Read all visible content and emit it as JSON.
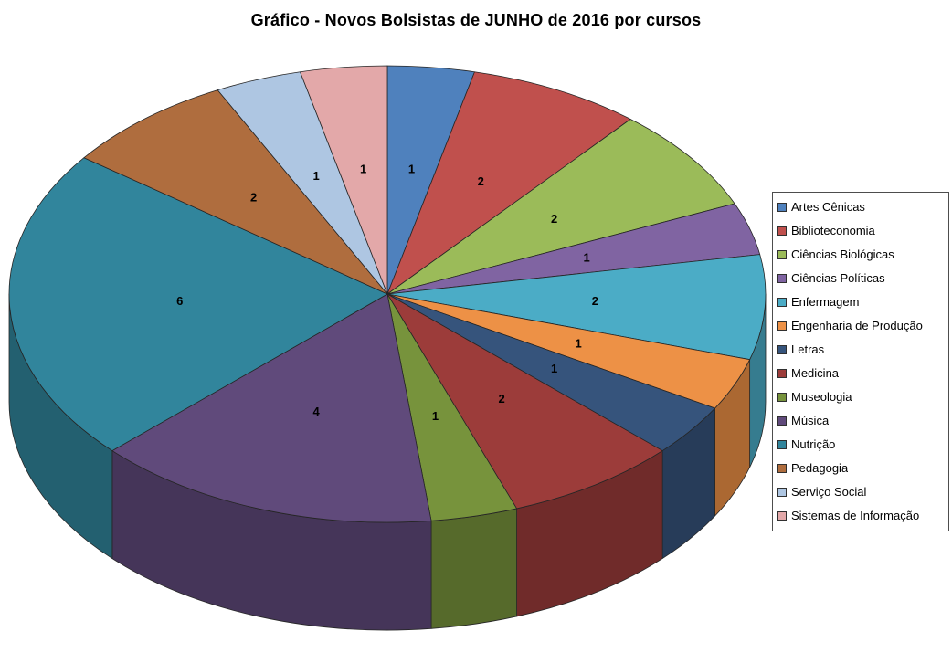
{
  "title": "Gráfico - Novos Bolsistas de JUNHO de 2016 por cursos",
  "chart_data": {
    "type": "pie",
    "is_3d": true,
    "title": "Gráfico - Novos Bolsistas de JUNHO de 2016 por cursos",
    "direction": "clockwise",
    "start_angle_deg": 0,
    "legend_position": "right",
    "total": 27,
    "categories": [
      "Artes Cênicas",
      "Biblioteconomia",
      "Ciências Biológicas",
      "Ciências Políticas",
      "Enfermagem",
      "Engenharia de Produção",
      "Letras",
      "Medicina",
      "Museologia",
      "Música",
      "Nutrição",
      "Pedagogia",
      "Serviço Social",
      "Sistemas de Informação"
    ],
    "values": [
      1,
      2,
      2,
      1,
      2,
      1,
      1,
      2,
      1,
      4,
      6,
      2,
      1,
      1
    ],
    "data_labels": [
      "1",
      "2",
      "2",
      "1",
      "2",
      "1",
      "1",
      "2",
      "1",
      "4",
      "6",
      "2",
      "1",
      "1"
    ],
    "colors": [
      "#4F81BD",
      "#C0504D",
      "#9BBB59",
      "#8064A2",
      "#4BACC6",
      "#ED9146",
      "#36547C",
      "#9C3C3A",
      "#77933C",
      "#604A7B",
      "#31859C",
      "#AF6D3E",
      "#AEC6E2",
      "#E3A8A9"
    ],
    "stroke_color": "#262626",
    "background": "#FFFFFF"
  }
}
